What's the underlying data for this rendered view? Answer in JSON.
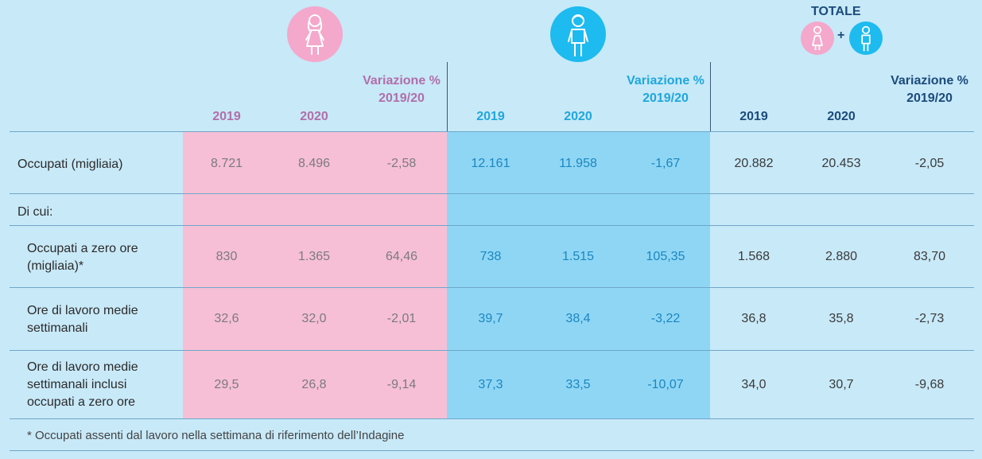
{
  "header": {
    "totale_title": "TOTALE",
    "plus": "+",
    "female_cols": [
      "2019",
      "2020",
      "Variazione % 2019/20"
    ],
    "male_cols": [
      "2019",
      "2020",
      "Variazione % 2019/20"
    ],
    "total_cols": [
      "2019",
      "2020",
      "Variazione % 2019/20"
    ]
  },
  "rows": [
    {
      "label": "Occupati (migliaia)",
      "f": [
        "8.721",
        "8.496",
        "-2,58"
      ],
      "m": [
        "12.161",
        "11.958",
        "-1,67"
      ],
      "t": [
        "20.882",
        "20.453",
        "-2,05"
      ]
    },
    {
      "label": "Di cui:",
      "f": [
        "",
        "",
        ""
      ],
      "m": [
        "",
        "",
        ""
      ],
      "t": [
        "",
        "",
        ""
      ]
    },
    {
      "label": "Occupati a zero ore (migliaia)*",
      "f": [
        "830",
        "1.365",
        "64,46"
      ],
      "m": [
        "738",
        "1.515",
        "105,35"
      ],
      "t": [
        "1.568",
        "2.880",
        "83,70"
      ]
    },
    {
      "label": "Ore di lavoro medie settimanali",
      "f": [
        "32,6",
        "32,0",
        "-2,01"
      ],
      "m": [
        "39,7",
        "38,4",
        "-3,22"
      ],
      "t": [
        "36,8",
        "35,8",
        "-2,73"
      ]
    },
    {
      "label": "Ore di lavoro medie settimanali inclusi occupati a zero ore",
      "f": [
        "29,5",
        "26,8",
        "-9,14"
      ],
      "m": [
        "37,3",
        "33,5",
        "-10,07"
      ],
      "t": [
        "34,0",
        "30,7",
        "-9,68"
      ]
    }
  ],
  "footnote": "* Occupati assenti dal lavoro nella settimana di riferimento dell’Indagine",
  "colors": {
    "female": "#f6bfd6",
    "male": "#8fd6f5",
    "female_icon": "#f4a8cb",
    "male_icon": "#1dbbef"
  },
  "icons": {
    "female": "woman-icon",
    "male": "man-icon"
  }
}
